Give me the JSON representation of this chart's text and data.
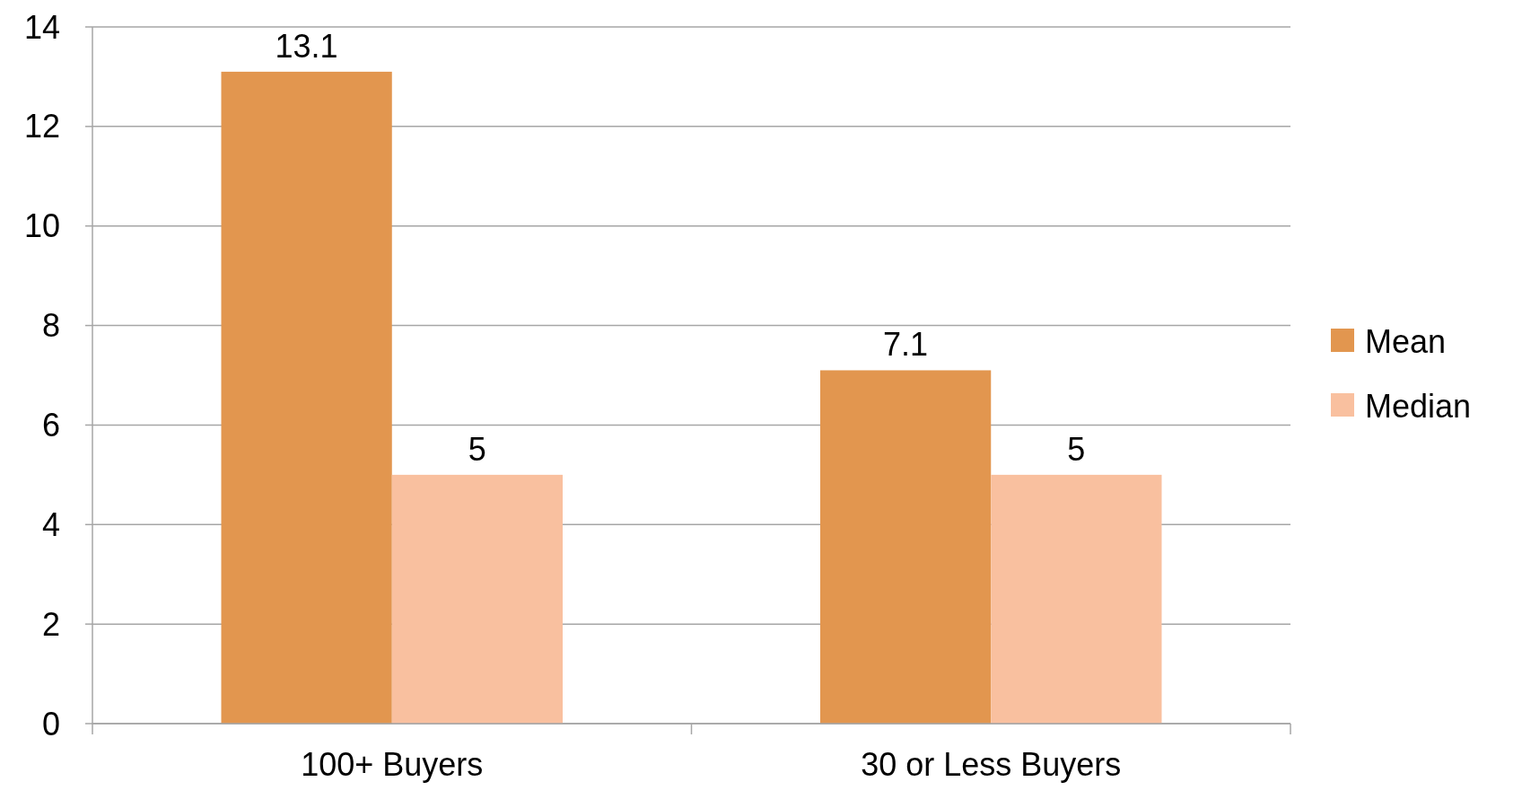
{
  "chart_data": {
    "type": "bar",
    "categories": [
      "100+ Buyers",
      "30 or Less Buyers"
    ],
    "series": [
      {
        "name": "Mean",
        "color": "#e2964f",
        "values": [
          13.1,
          7.1
        ]
      },
      {
        "name": "Median",
        "color": "#f9c09f",
        "values": [
          5,
          5
        ]
      }
    ],
    "ylim": [
      0,
      14
    ],
    "yticks": [
      0,
      2,
      4,
      6,
      8,
      10,
      12,
      14
    ],
    "grid": "y",
    "legend": "right",
    "data_labels": true
  }
}
